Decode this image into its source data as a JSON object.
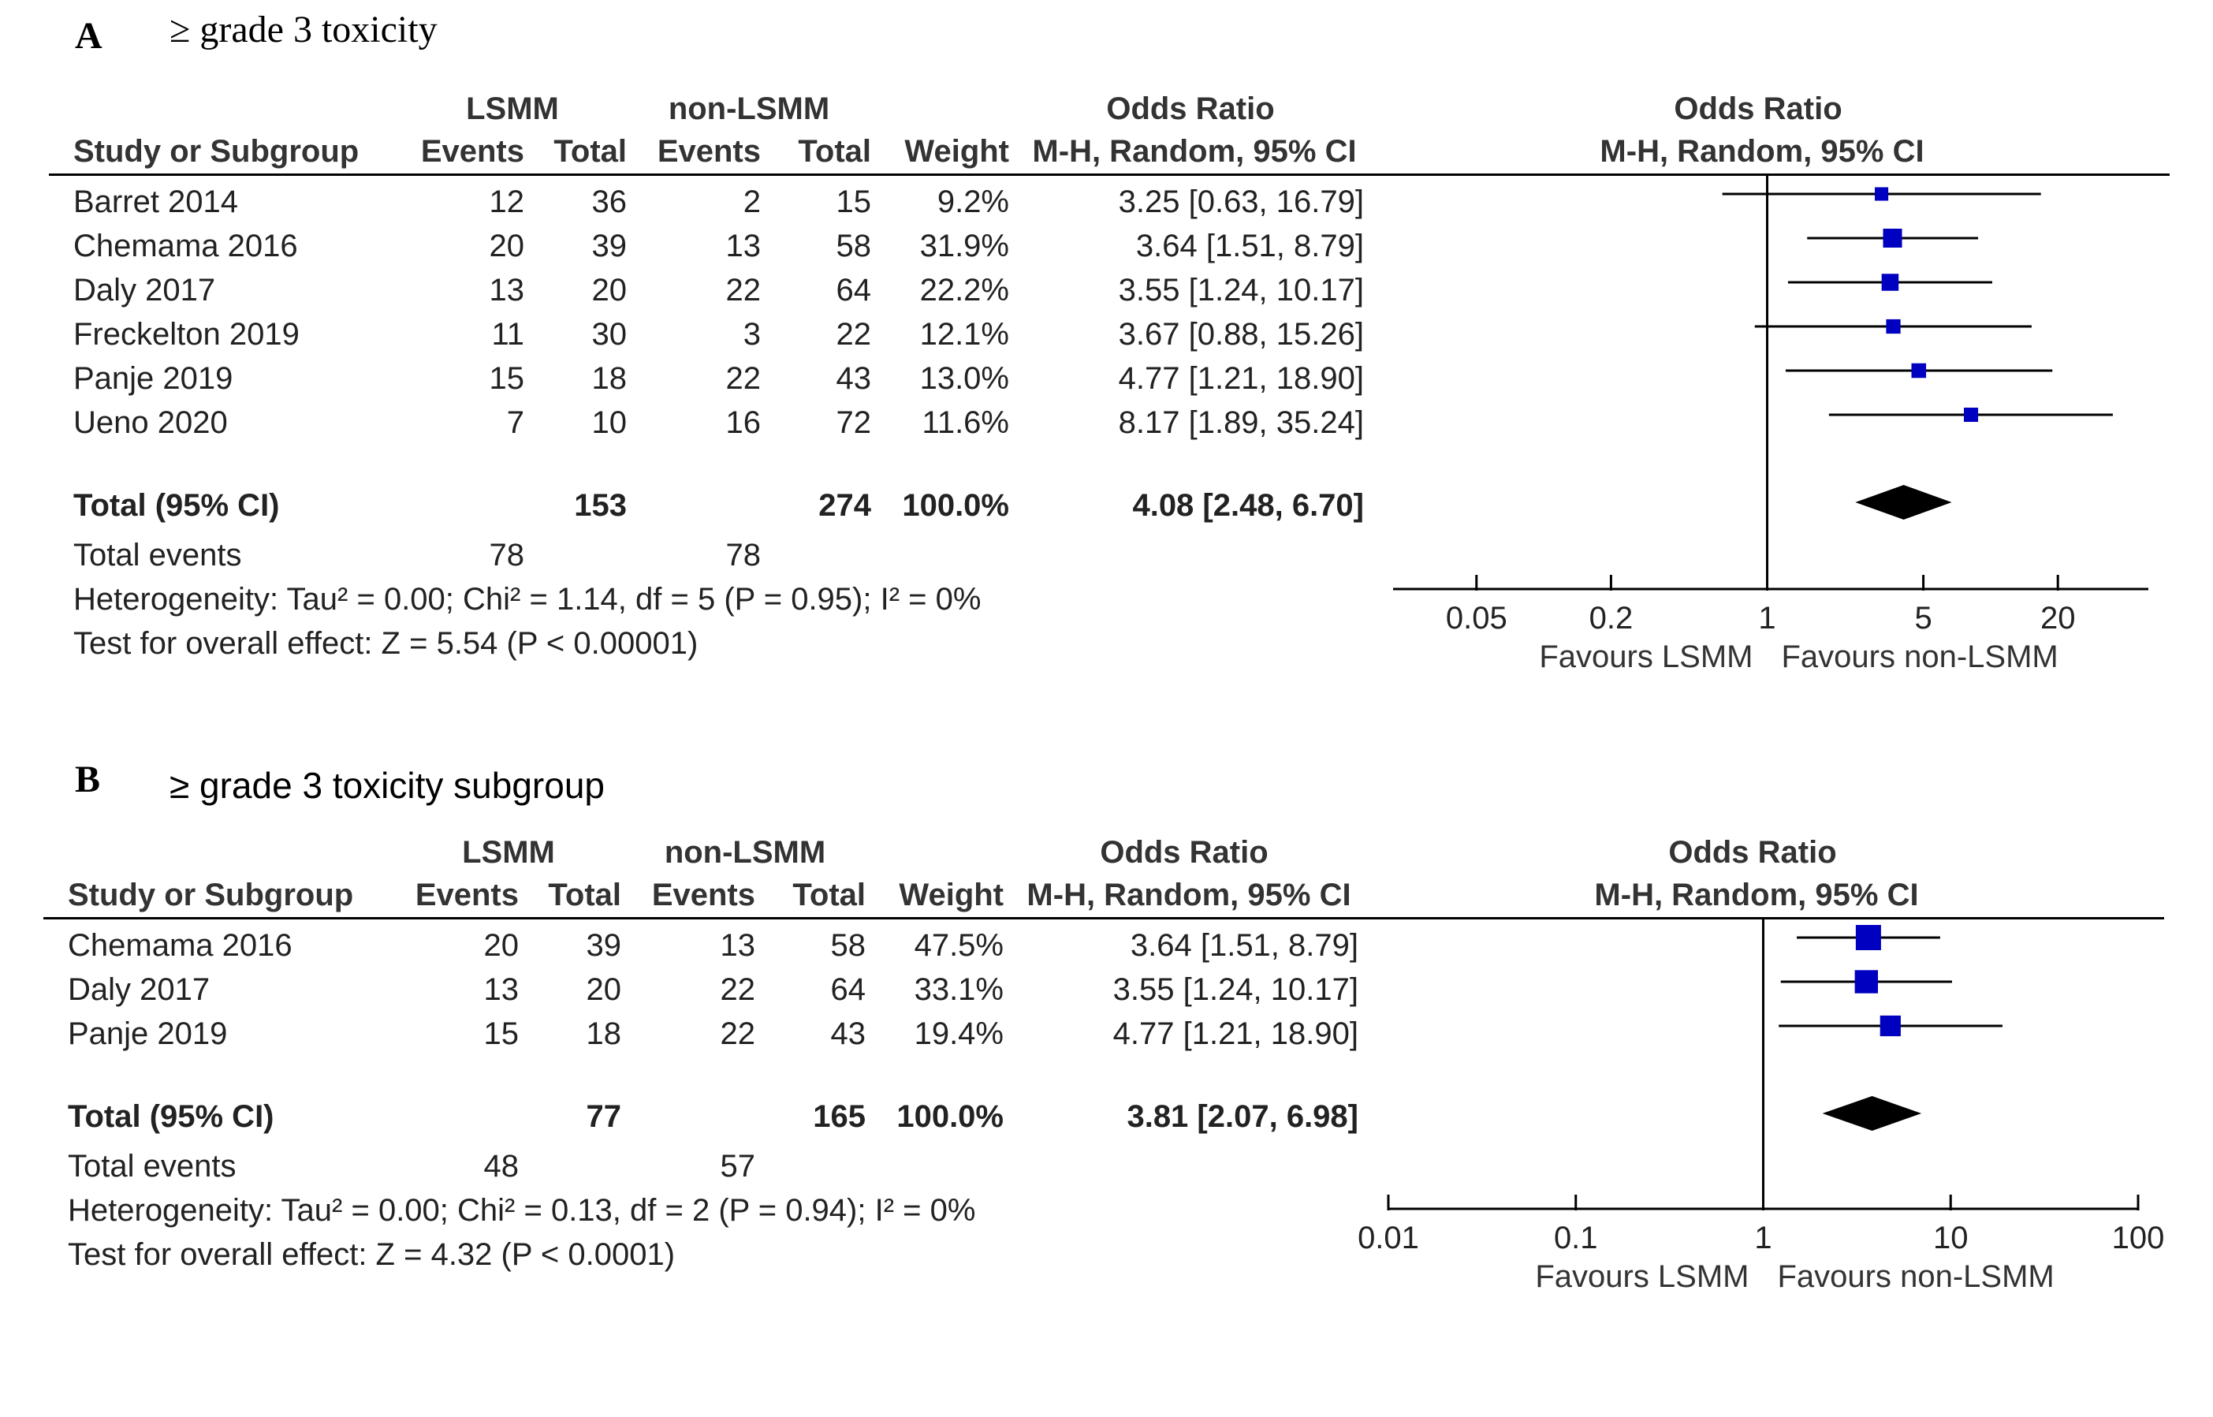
{
  "chart_data": [
    {
      "type": "forest",
      "panel_letter": "A",
      "title": "≥ grade 3 toxicity",
      "group_headers": {
        "experimental": "LSMM",
        "control": "non-LSMM"
      },
      "col_headers": {
        "study": "Study or Subgroup",
        "events": "Events",
        "total": "Total",
        "weight": "Weight",
        "or_title": "Odds Ratio",
        "or_method": "M-H, Random, 95% CI"
      },
      "studies": [
        {
          "name": "Barret 2014",
          "e_events": "12",
          "e_total": "36",
          "c_events": "2",
          "c_total": "15",
          "weight": "9.2%",
          "ci_text": "3.25 [0.63, 16.79]",
          "or": 3.25,
          "lo": 0.63,
          "hi": 16.79,
          "w": 9.2
        },
        {
          "name": "Chemama 2016",
          "e_events": "20",
          "e_total": "39",
          "c_events": "13",
          "c_total": "58",
          "weight": "31.9%",
          "ci_text": "3.64 [1.51, 8.79]",
          "or": 3.64,
          "lo": 1.51,
          "hi": 8.79,
          "w": 31.9
        },
        {
          "name": "Daly 2017",
          "e_events": "13",
          "e_total": "20",
          "c_events": "22",
          "c_total": "64",
          "weight": "22.2%",
          "ci_text": "3.55 [1.24, 10.17]",
          "or": 3.55,
          "lo": 1.24,
          "hi": 10.17,
          "w": 22.2
        },
        {
          "name": "Freckelton 2019",
          "e_events": "11",
          "e_total": "30",
          "c_events": "3",
          "c_total": "22",
          "weight": "12.1%",
          "ci_text": "3.67 [0.88, 15.26]",
          "or": 3.67,
          "lo": 0.88,
          "hi": 15.26,
          "w": 12.1
        },
        {
          "name": "Panje 2019",
          "e_events": "15",
          "e_total": "18",
          "c_events": "22",
          "c_total": "43",
          "weight": "13.0%",
          "ci_text": "4.77 [1.21, 18.90]",
          "or": 4.77,
          "lo": 1.21,
          "hi": 18.9,
          "w": 13.0
        },
        {
          "name": "Ueno 2020",
          "e_events": "7",
          "e_total": "10",
          "c_events": "16",
          "c_total": "72",
          "weight": "11.6%",
          "ci_text": "8.17 [1.89, 35.24]",
          "or": 8.17,
          "lo": 1.89,
          "hi": 35.24,
          "w": 11.6
        }
      ],
      "total": {
        "label": "Total (95% CI)",
        "e_total": "153",
        "c_total": "274",
        "weight": "100.0%",
        "ci_text": "4.08 [2.48, 6.70]",
        "or": 4.08,
        "lo": 2.48,
        "hi": 6.7
      },
      "total_events": {
        "label": "Total events",
        "e_events": "78",
        "c_events": "78"
      },
      "heterogeneity": "Heterogeneity: Tau² = 0.00; Chi² = 1.14, df = 5 (P = 0.95); I² = 0%",
      "overall_effect": "Test for overall effect: Z = 5.54 (P < 0.00001)",
      "axis": {
        "scale": "log",
        "range": [
          0.02,
          50
        ],
        "ticks": [
          0.05,
          0.2,
          1,
          5,
          20
        ],
        "tick_labels": [
          "0.05",
          "0.2",
          "1",
          "5",
          "20"
        ]
      },
      "favours_left": "Favours LSMM",
      "favours_right": "Favours non-LSMM"
    },
    {
      "type": "forest",
      "panel_letter": "B",
      "title": "≥ grade 3 toxicity subgroup",
      "group_headers": {
        "experimental": "LSMM",
        "control": "non-LSMM"
      },
      "col_headers": {
        "study": "Study or Subgroup",
        "events": "Events",
        "total": "Total",
        "weight": "Weight",
        "or_title": "Odds Ratio",
        "or_method": "M-H, Random, 95% CI"
      },
      "studies": [
        {
          "name": "Chemama 2016",
          "e_events": "20",
          "e_total": "39",
          "c_events": "13",
          "c_total": "58",
          "weight": "47.5%",
          "ci_text": "3.64 [1.51, 8.79]",
          "or": 3.64,
          "lo": 1.51,
          "hi": 8.79,
          "w": 47.5
        },
        {
          "name": "Daly 2017",
          "e_events": "13",
          "e_total": "20",
          "c_events": "22",
          "c_total": "64",
          "weight": "33.1%",
          "ci_text": "3.55 [1.24, 10.17]",
          "or": 3.55,
          "lo": 1.24,
          "hi": 10.17,
          "w": 33.1
        },
        {
          "name": "Panje 2019",
          "e_events": "15",
          "e_total": "18",
          "c_events": "22",
          "c_total": "43",
          "weight": "19.4%",
          "ci_text": "4.77 [1.21, 18.90]",
          "or": 4.77,
          "lo": 1.21,
          "hi": 18.9,
          "w": 19.4
        }
      ],
      "total": {
        "label": "Total (95% CI)",
        "e_total": "77",
        "c_total": "165",
        "weight": "100.0%",
        "ci_text": "3.81 [2.07, 6.98]",
        "or": 3.81,
        "lo": 2.07,
        "hi": 6.98
      },
      "total_events": {
        "label": "Total events",
        "e_events": "48",
        "c_events": "57"
      },
      "heterogeneity": "Heterogeneity: Tau² = 0.00; Chi² = 0.13, df = 2 (P = 0.94); I² = 0%",
      "overall_effect": "Test for overall effect: Z = 4.32 (P < 0.0001)",
      "axis": {
        "scale": "log",
        "range": [
          0.01,
          100
        ],
        "ticks": [
          0.01,
          0.1,
          1,
          10,
          100
        ],
        "tick_labels": [
          "0.01",
          "0.1",
          "1",
          "10",
          "100"
        ]
      },
      "favours_left": "Favours LSMM",
      "favours_right": "Favours non-LSMM"
    }
  ]
}
